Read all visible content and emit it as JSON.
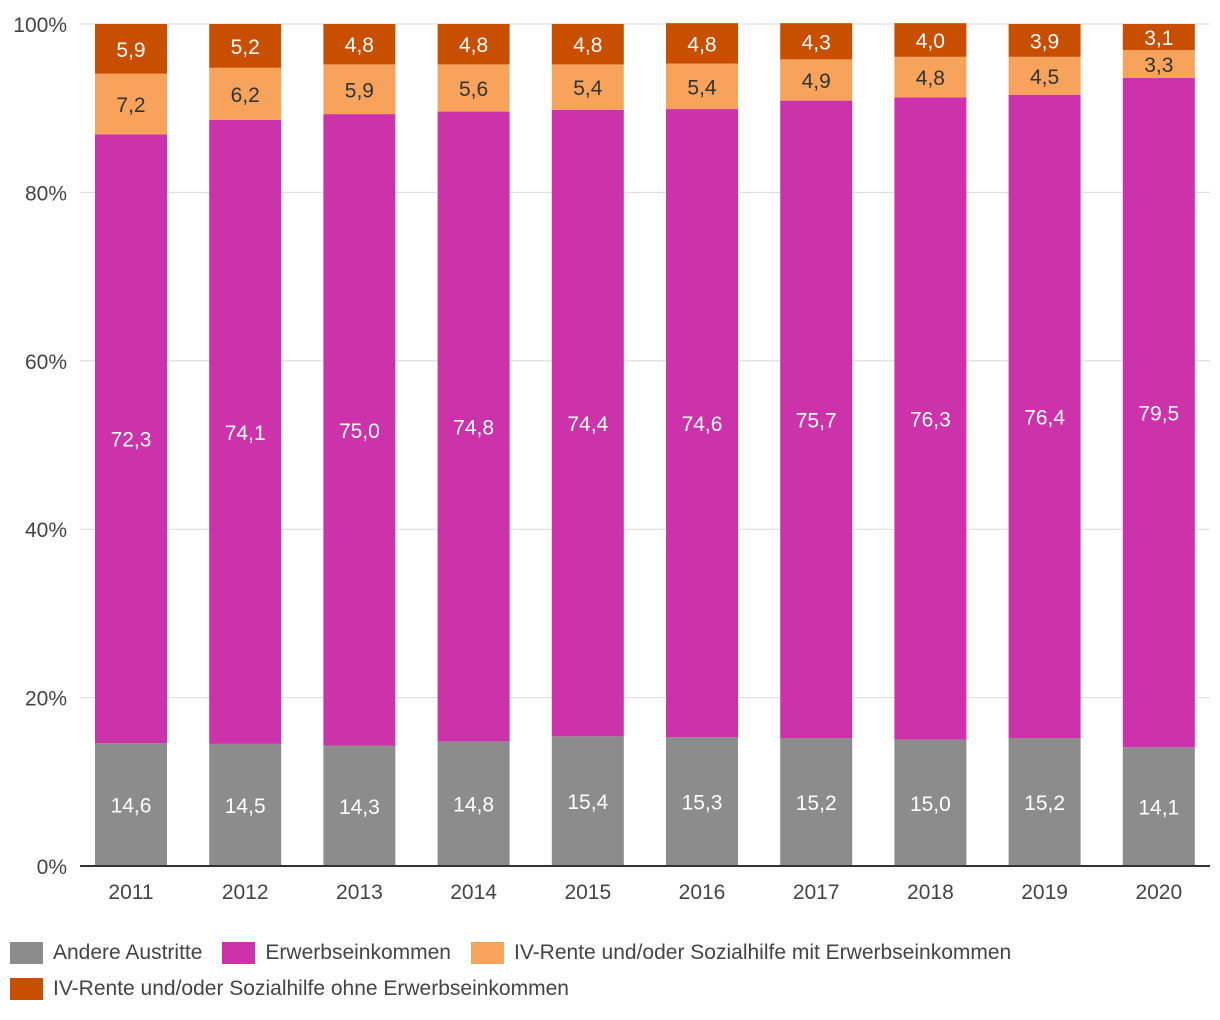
{
  "chart_data": {
    "type": "bar",
    "stacked": true,
    "categories": [
      "2011",
      "2012",
      "2013",
      "2014",
      "2015",
      "2016",
      "2017",
      "2018",
      "2019",
      "2020"
    ],
    "series": [
      {
        "name": "Andere Austritte",
        "color": "#8c8c8c",
        "values": [
          14.6,
          14.5,
          14.3,
          14.8,
          15.4,
          15.3,
          15.2,
          15.0,
          15.2,
          14.1
        ],
        "labels": [
          "14,6",
          "14,5",
          "14,3",
          "14,8",
          "15,4",
          "15,3",
          "15,2",
          "15,0",
          "15,2",
          "14,1"
        ]
      },
      {
        "name": "Erwerbseinkommen",
        "color": "#cc33aa",
        "values": [
          72.3,
          74.1,
          75.0,
          74.8,
          74.4,
          74.6,
          75.7,
          76.3,
          76.4,
          79.5
        ],
        "labels": [
          "72,3",
          "74,1",
          "75,0",
          "74,8",
          "74,4",
          "74,6",
          "75,7",
          "76,3",
          "76,4",
          "79,5"
        ]
      },
      {
        "name": "IV-Rente und/oder Sozialhilfe mit Erwerbseinkommen",
        "color": "#f7a35c",
        "values": [
          7.2,
          6.2,
          5.9,
          5.6,
          5.4,
          5.4,
          4.9,
          4.8,
          4.5,
          3.3
        ],
        "labels": [
          "7,2",
          "6,2",
          "5,9",
          "5,6",
          "5,4",
          "5,4",
          "4,9",
          "4,8",
          "4,5",
          "3,3"
        ]
      },
      {
        "name": "IV-Rente und/oder Sozialhilfe ohne Erwerbseinkommen",
        "color": "#c94f00",
        "values": [
          5.9,
          5.2,
          4.8,
          4.8,
          4.8,
          4.8,
          4.3,
          4.0,
          3.9,
          3.1
        ],
        "labels": [
          "5,9",
          "5,2",
          "4,8",
          "4,8",
          "4,8",
          "4,8",
          "4,3",
          "4,0",
          "3,9",
          "3,1"
        ]
      }
    ],
    "yticks": [
      "0%",
      "20%",
      "40%",
      "60%",
      "80%",
      "100%"
    ],
    "ylim": [
      0,
      100
    ],
    "grid": true,
    "legend_position": "bottom-left"
  }
}
